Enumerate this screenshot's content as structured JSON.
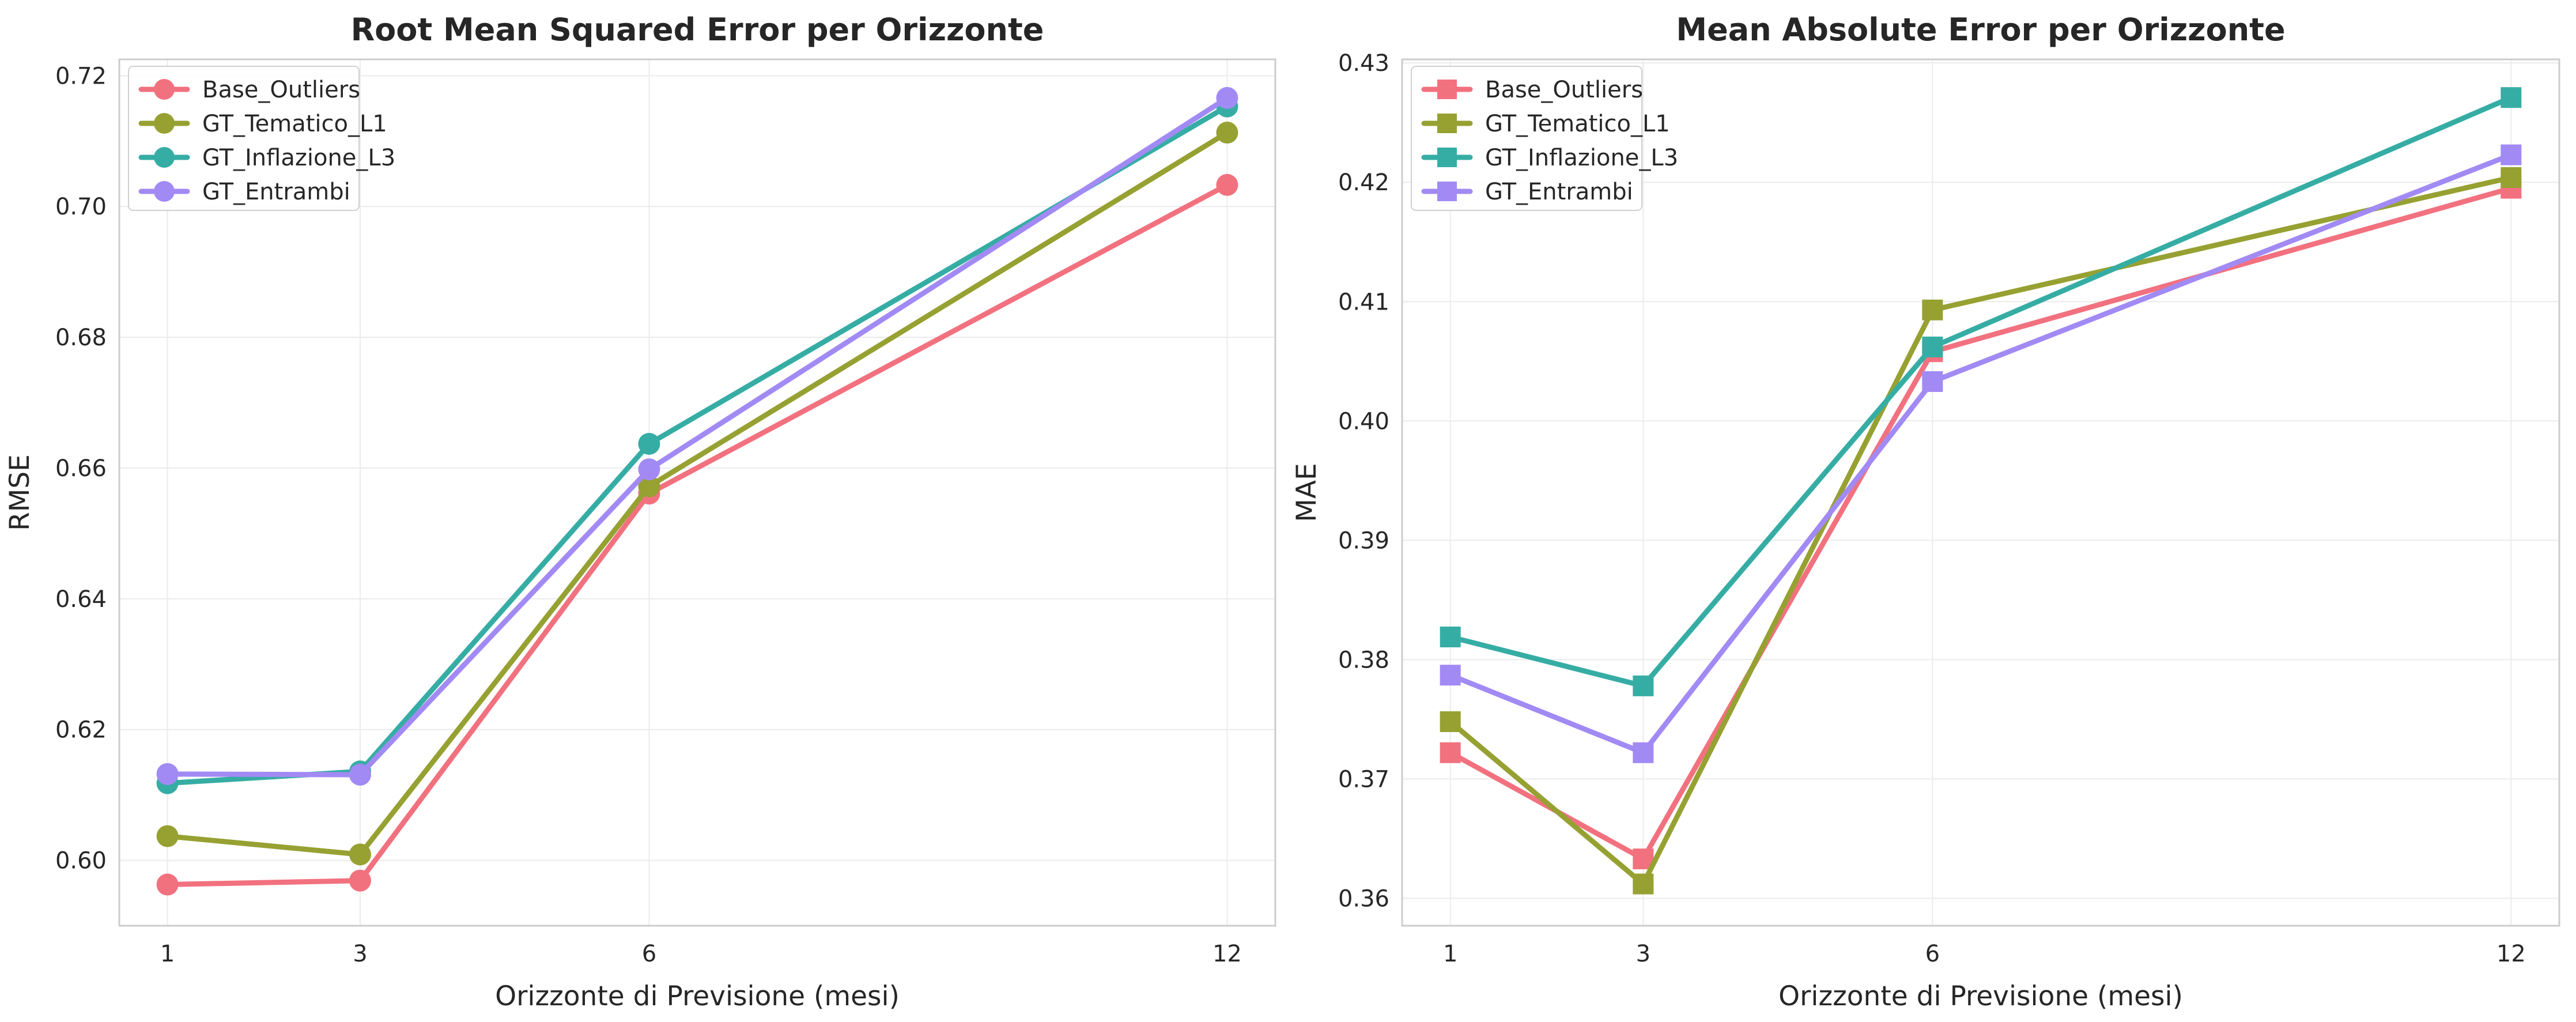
{
  "chart_data": [
    {
      "type": "line",
      "title": "Root Mean Squared Error per Orizzonte",
      "xlabel": "Orizzonte di Previsione (mesi)",
      "ylabel": "RMSE",
      "x": [
        1,
        3,
        6,
        12
      ],
      "xlim": [
        0.5,
        12.5
      ],
      "ylim": [
        0.59,
        0.7225
      ],
      "yticks": [
        "0.60",
        "0.62",
        "0.64",
        "0.66",
        "0.68",
        "0.70",
        "0.72"
      ],
      "ytick_values": [
        0.6,
        0.62,
        0.64,
        0.66,
        0.68,
        0.7,
        0.72
      ],
      "marker": "circle",
      "grid": true,
      "legend_position": "top-left",
      "series": [
        {
          "name": "Base_Outliers",
          "color": "#f2717f",
          "values": [
            0.5963,
            0.5969,
            0.6561,
            0.7033
          ]
        },
        {
          "name": "GT_Tematico_L1",
          "color": "#96a132",
          "values": [
            0.6037,
            0.6009,
            0.6572,
            0.7113
          ]
        },
        {
          "name": "GT_Inflazione_L3",
          "color": "#36ada4",
          "values": [
            0.6118,
            0.6136,
            0.6637,
            0.7153
          ]
        },
        {
          "name": "GT_Entrambi",
          "color": "#a28af4",
          "values": [
            0.6132,
            0.6131,
            0.6598,
            0.7166
          ]
        }
      ]
    },
    {
      "type": "line",
      "title": "Mean Absolute Error per Orizzonte",
      "xlabel": "Orizzonte di Previsione (mesi)",
      "ylabel": "MAE",
      "x": [
        1,
        3,
        6,
        12
      ],
      "xlim": [
        0.5,
        12.5
      ],
      "ylim": [
        0.3577,
        0.4303
      ],
      "yticks": [
        "0.36",
        "0.37",
        "0.38",
        "0.39",
        "0.40",
        "0.41",
        "0.42",
        "0.43"
      ],
      "ytick_values": [
        0.36,
        0.37,
        0.38,
        0.39,
        0.4,
        0.41,
        0.42,
        0.43
      ],
      "marker": "square",
      "grid": true,
      "legend_position": "top-left",
      "series": [
        {
          "name": "Base_Outliers",
          "color": "#f2717f",
          "values": [
            0.3722,
            0.3633,
            0.4058,
            0.4195
          ]
        },
        {
          "name": "GT_Tematico_L1",
          "color": "#96a132",
          "values": [
            0.3748,
            0.3612,
            0.4093,
            0.4204
          ]
        },
        {
          "name": "GT_Inflazione_L3",
          "color": "#36ada4",
          "values": [
            0.3819,
            0.3778,
            0.4062,
            0.4271
          ]
        },
        {
          "name": "GT_Entrambi",
          "color": "#a28af4",
          "values": [
            0.3787,
            0.3722,
            0.4033,
            0.4223
          ]
        }
      ]
    }
  ]
}
